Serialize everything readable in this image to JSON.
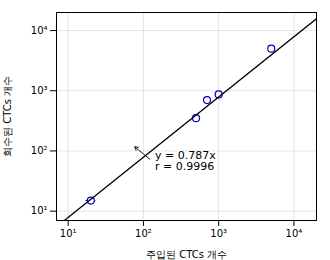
{
  "chart_data": {
    "type": "scatter",
    "x_label": "주입된 CTCs 개수",
    "y_label": "회수된 CTCs 개수",
    "log": true,
    "grid": true,
    "xlim": [
      6.99842,
      19952.62
    ],
    "ylim": [
      6.99842,
      19952.62
    ],
    "xticks": [
      {
        "value": 10,
        "label": "10¹"
      },
      {
        "value": 100,
        "label": "10²"
      },
      {
        "value": 1000,
        "label": "10³"
      },
      {
        "value": 10000,
        "label": "10⁴"
      }
    ],
    "yticks": [
      {
        "value": 10,
        "label": "10¹"
      },
      {
        "value": 100,
        "label": "10²"
      },
      {
        "value": 1000,
        "label": "10³"
      },
      {
        "value": 10000,
        "label": "10⁴"
      }
    ],
    "series": [
      {
        "type": "scatter",
        "color": "#0000cc",
        "marker": "o",
        "x": [
          20,
          500,
          700,
          1000,
          5000
        ],
        "values": [
          15,
          350,
          700,
          870,
          5000
        ],
        "x_err": [
          3,
          0,
          0,
          60,
          0
        ],
        "y_err": [
          2,
          0,
          0,
          50,
          0
        ]
      },
      {
        "type": "line",
        "color": "black",
        "x": [
          8.89253,
          19952.62
        ],
        "values": [
          6.99842,
          15702.71
        ]
      }
    ],
    "annotations": [
      {
        "text": "y = 0.787x\nr = 0.9996",
        "x": 130,
        "y": 68,
        "arrow_x": 75,
        "arrow_y": 120
      }
    ]
  }
}
